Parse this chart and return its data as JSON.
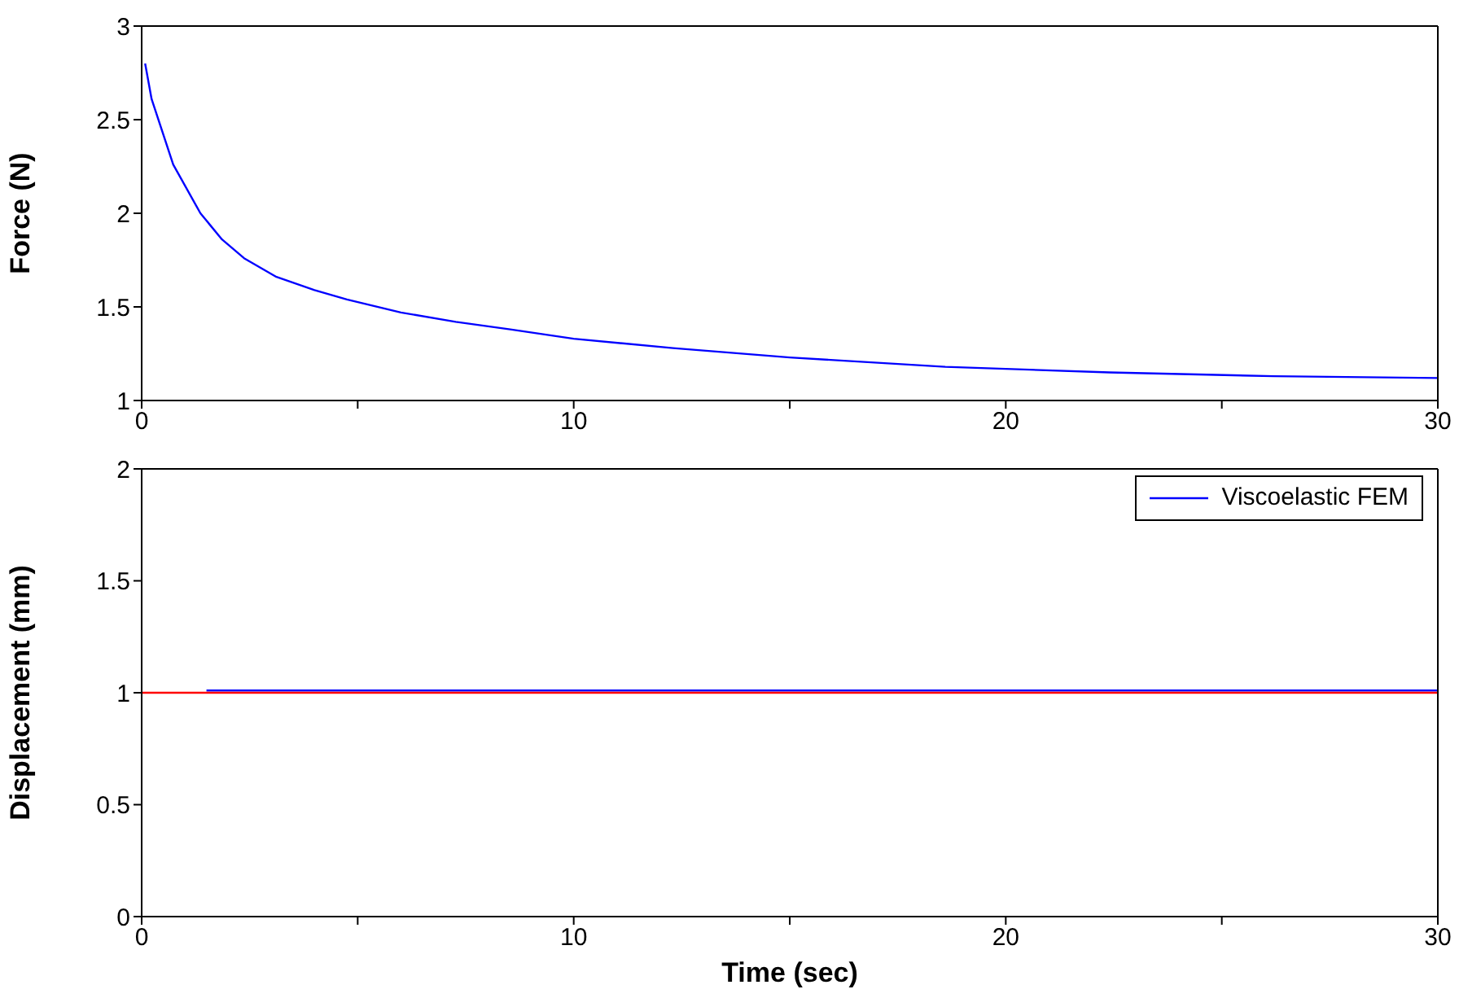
{
  "chart_data": [
    {
      "type": "line",
      "ylabel": "Force (N)",
      "xlim": [
        0,
        30
      ],
      "ylim": [
        1,
        3
      ],
      "xticks": [
        0,
        {
          "value": 5,
          "label": null
        },
        10,
        {
          "value": 15,
          "label": null
        },
        20,
        {
          "value": 25,
          "label": null
        },
        30
      ],
      "yticks": [
        1,
        1.5,
        2,
        2.5,
        3
      ],
      "legend": false,
      "marker": "none",
      "line_style": "solid",
      "series": [
        {
          "color": "#0000ff",
          "x": [
            0.08,
            0.23,
            0.73,
            1.36,
            1.86,
            2.37,
            3.12,
            4.0,
            4.75,
            6.0,
            7.27,
            8.53,
            10.0,
            12.3,
            15.0,
            18.6,
            22.4,
            26.2,
            30
          ],
          "values": [
            2.8,
            2.61,
            2.26,
            2.0,
            1.86,
            1.76,
            1.66,
            1.59,
            1.54,
            1.47,
            1.42,
            1.38,
            1.33,
            1.28,
            1.23,
            1.18,
            1.15,
            1.13,
            1.12
          ]
        }
      ]
    },
    {
      "type": "line",
      "xlabel": "Time (sec)",
      "ylabel": "Displacement (mm)",
      "xlim": [
        0,
        30
      ],
      "ylim": [
        0,
        2
      ],
      "xticks": [
        0,
        {
          "value": 5,
          "label": null
        },
        10,
        {
          "value": 15,
          "label": null
        },
        20,
        {
          "value": 25,
          "label": null
        },
        30
      ],
      "yticks": [
        0,
        0.5,
        1,
        1.5,
        2
      ],
      "legend": "top right",
      "marker": "none",
      "line_style": "solid",
      "series": [
        {
          "name": "Viscoelastic FEM",
          "color": "#0000ff",
          "x": [
            1.5,
            30
          ],
          "values": [
            1.01,
            1.01
          ]
        },
        {
          "color": "#ff0000",
          "x": [
            0,
            30
          ],
          "values": [
            1,
            1
          ]
        }
      ]
    }
  ]
}
